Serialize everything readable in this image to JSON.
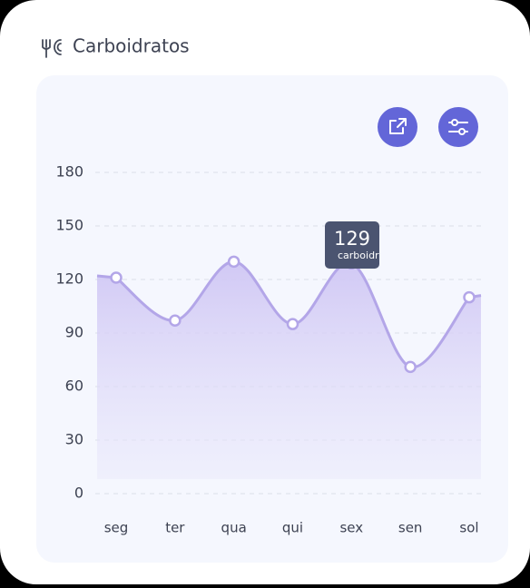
{
  "chart_data": {
    "type": "line",
    "title": "Carboidratos",
    "series_name": "carboidratos",
    "categories": [
      "seg",
      "ter",
      "qua",
      "qui",
      "sex",
      "sen",
      "sol"
    ],
    "values": [
      121,
      97,
      130,
      95,
      129,
      71,
      110
    ],
    "color": "#b3a6e8",
    "ylim": [
      0,
      180
    ],
    "yticks": [
      0,
      30,
      60,
      90,
      120,
      150,
      180
    ],
    "grid": true,
    "tooltip_index": 4
  }
}
